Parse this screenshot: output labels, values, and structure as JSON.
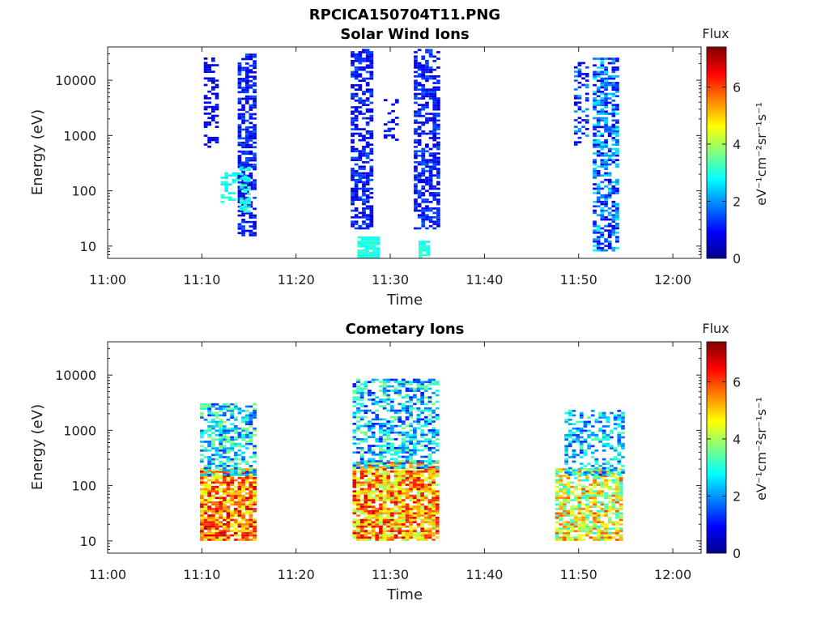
{
  "figure": {
    "title": "RPCICA150704T11.PNG"
  },
  "colorbar": {
    "title": "Flux",
    "unit_label": "eV⁻¹cm⁻²sr⁻¹s⁻¹",
    "ticks": [
      0,
      2,
      4,
      6
    ],
    "range": [
      0,
      7.4
    ],
    "colormap": "jet"
  },
  "chart_data": [
    {
      "type": "heatmap",
      "title": "Solar Wind Ions",
      "xlabel": "Time",
      "ylabel": "Energy (eV)",
      "x_unit": "minutes after 11:00",
      "xlim": [
        0,
        63
      ],
      "ylim": [
        6,
        40000
      ],
      "y_scale": "log",
      "x_ticks": [
        0,
        10,
        20,
        30,
        40,
        50,
        60
      ],
      "x_tick_labels": [
        "11:00",
        "11:10",
        "11:20",
        "11:30",
        "11:40",
        "11:50",
        "12:00"
      ],
      "y_ticks": [
        10,
        100,
        1000,
        10000
      ],
      "y_tick_labels": [
        "10",
        "100",
        "1000",
        "10000"
      ],
      "clusters": [
        {
          "t": [
            10.2,
            11.8
          ],
          "e": [
            600,
            25000
          ],
          "v": [
            0.3,
            1.2
          ],
          "density": 0.45
        },
        {
          "t": [
            12.0,
            13.8
          ],
          "e": [
            60,
            200
          ],
          "v": [
            2.6,
            3.2
          ],
          "density": 0.5
        },
        {
          "t": [
            13.8,
            15.8
          ],
          "e": [
            15,
            30000
          ],
          "v": [
            0.4,
            1.6
          ],
          "density": 0.62
        },
        {
          "t": [
            14.0,
            15.0
          ],
          "e": [
            40,
            300
          ],
          "v": [
            2.5,
            3.4
          ],
          "density": 0.55
        },
        {
          "t": [
            25.8,
            27.8
          ],
          "e": [
            20,
            35000
          ],
          "v": [
            0.4,
            1.6
          ],
          "density": 0.62
        },
        {
          "t": [
            26.5,
            28.5
          ],
          "e": [
            6,
            15
          ],
          "v": [
            2.8,
            3.2
          ],
          "density": 0.9
        },
        {
          "t": [
            29.3,
            30.8
          ],
          "e": [
            800,
            5000
          ],
          "v": [
            0.5,
            1.3
          ],
          "density": 0.35
        },
        {
          "t": [
            32.5,
            35.2
          ],
          "e": [
            20,
            35000
          ],
          "v": [
            0.4,
            1.6
          ],
          "density": 0.62
        },
        {
          "t": [
            33.0,
            34.0
          ],
          "e": [
            6,
            12
          ],
          "v": [
            2.8,
            3.2
          ],
          "density": 0.8
        },
        {
          "t": [
            49.5,
            51.0
          ],
          "e": [
            600,
            20000
          ],
          "v": [
            0.4,
            2.2
          ],
          "density": 0.35
        },
        {
          "t": [
            51.5,
            54.2
          ],
          "e": [
            8,
            25000
          ],
          "v": [
            0.5,
            2.8
          ],
          "density": 0.6
        }
      ]
    },
    {
      "type": "heatmap",
      "title": "Cometary Ions",
      "xlabel": "Time",
      "ylabel": "Energy (eV)",
      "x_unit": "minutes after 11:00",
      "xlim": [
        0,
        63
      ],
      "ylim": [
        6,
        40000
      ],
      "y_scale": "log",
      "x_ticks": [
        0,
        10,
        20,
        30,
        40,
        50,
        60
      ],
      "x_tick_labels": [
        "11:00",
        "11:10",
        "11:20",
        "11:30",
        "11:40",
        "11:50",
        "12:00"
      ],
      "y_ticks": [
        10,
        100,
        1000,
        10000
      ],
      "y_tick_labels": [
        "10",
        "100",
        "1000",
        "10000"
      ],
      "clusters": [
        {
          "t": [
            9.8,
            15.5
          ],
          "e": [
            10,
            200
          ],
          "v": [
            4.2,
            7.0
          ],
          "density": 0.85
        },
        {
          "t": [
            9.8,
            15.5
          ],
          "e": [
            150,
            3000
          ],
          "v": [
            1.2,
            4.0
          ],
          "density": 0.6
        },
        {
          "t": [
            26.0,
            35.0
          ],
          "e": [
            10,
            250
          ],
          "v": [
            3.8,
            6.8
          ],
          "density": 0.82
        },
        {
          "t": [
            26.0,
            35.0
          ],
          "e": [
            200,
            8000
          ],
          "v": [
            1.0,
            3.8
          ],
          "density": 0.55
        },
        {
          "t": [
            47.5,
            54.5
          ],
          "e": [
            10,
            200
          ],
          "v": [
            2.8,
            6.0
          ],
          "density": 0.7
        },
        {
          "t": [
            48.5,
            54.5
          ],
          "e": [
            150,
            2200
          ],
          "v": [
            1.2,
            3.5
          ],
          "density": 0.45
        }
      ]
    }
  ]
}
